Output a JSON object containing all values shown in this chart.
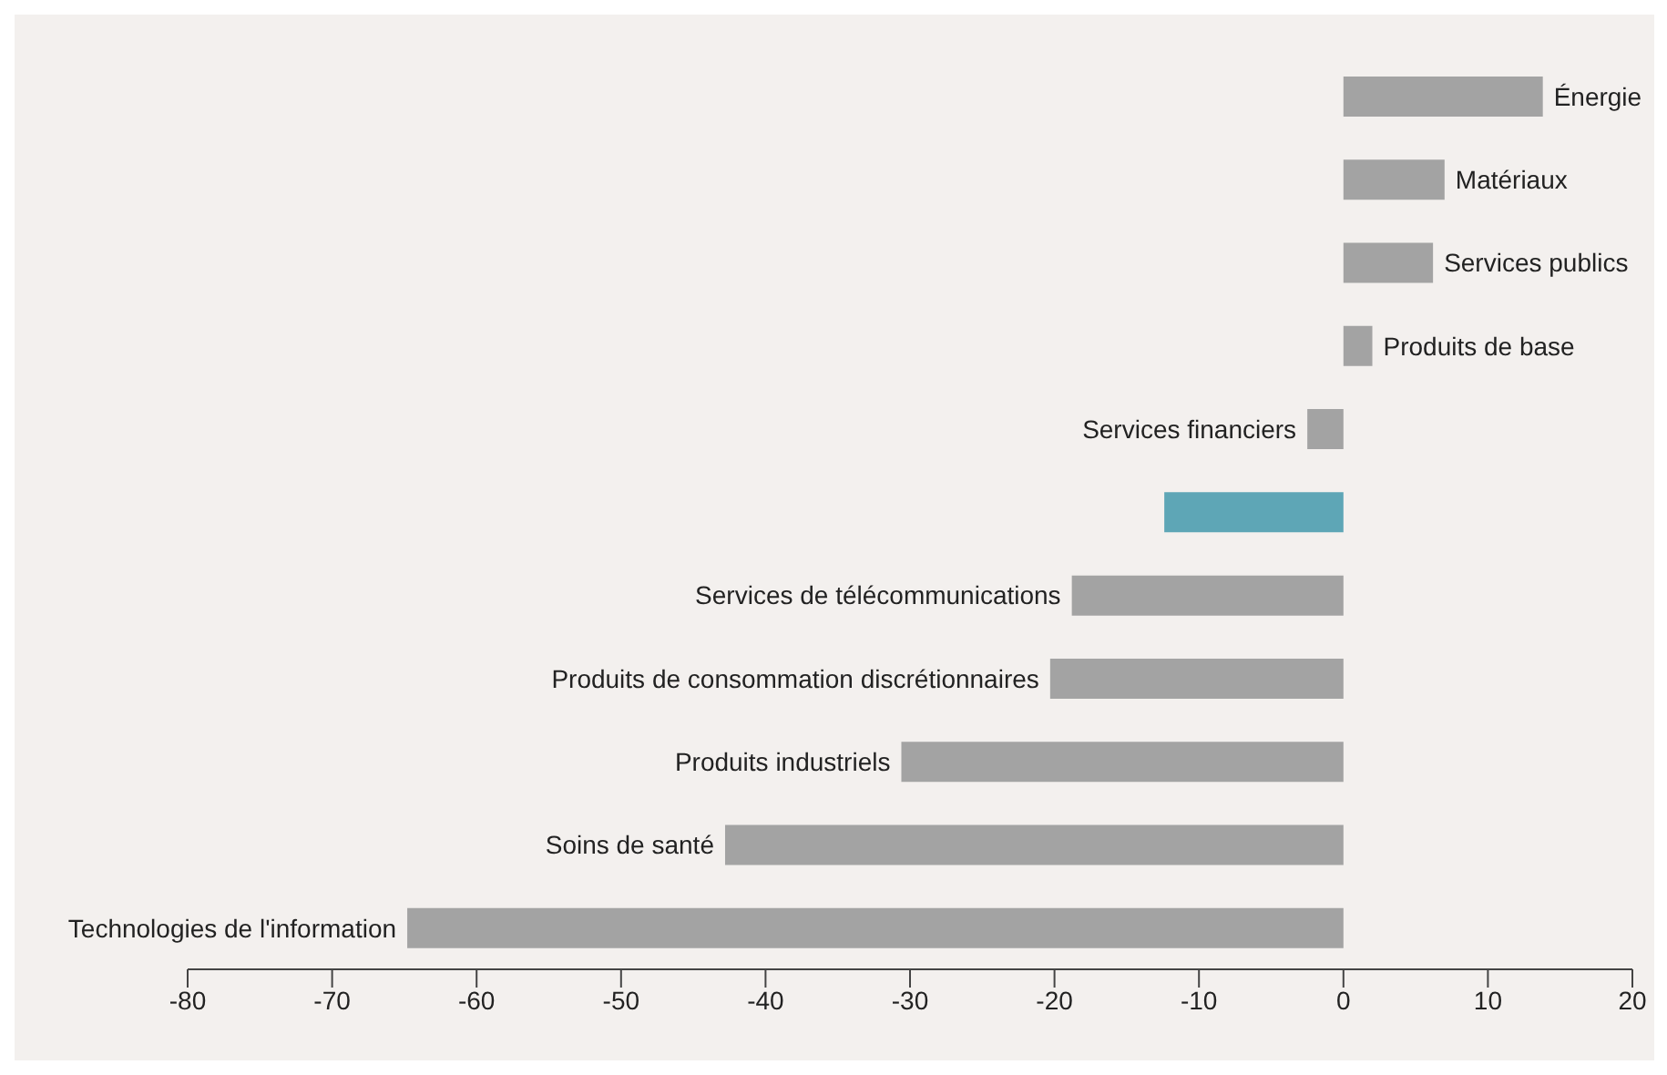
{
  "chart_data": {
    "type": "bar",
    "orientation": "horizontal",
    "categories": [
      "Énergie",
      "Matériaux",
      "Services publics",
      "Produits de base",
      "Services financiers",
      null,
      "Services de télécommunications",
      "Produits de consommation discrétionnaires",
      "Produits industriels",
      "Soins de santé",
      "Technologies de l'information"
    ],
    "values": [
      13.8,
      7,
      6.2,
      2,
      -2.5,
      -12.4,
      -18.8,
      -20.3,
      -30.6,
      -42.8,
      -64.8
    ],
    "colors": [
      "#a3a3a3",
      "#a3a3a3",
      "#a3a3a3",
      "#a3a3a3",
      "#a3a3a3",
      "#5ea6b6",
      "#a3a3a3",
      "#a3a3a3",
      "#a3a3a3",
      "#a3a3a3",
      "#a3a3a3"
    ],
    "xlim": [
      -80,
      20
    ],
    "xticks": [
      -80,
      -70,
      -60,
      -50,
      -40,
      -30,
      -20,
      -10,
      0,
      10,
      20
    ]
  }
}
